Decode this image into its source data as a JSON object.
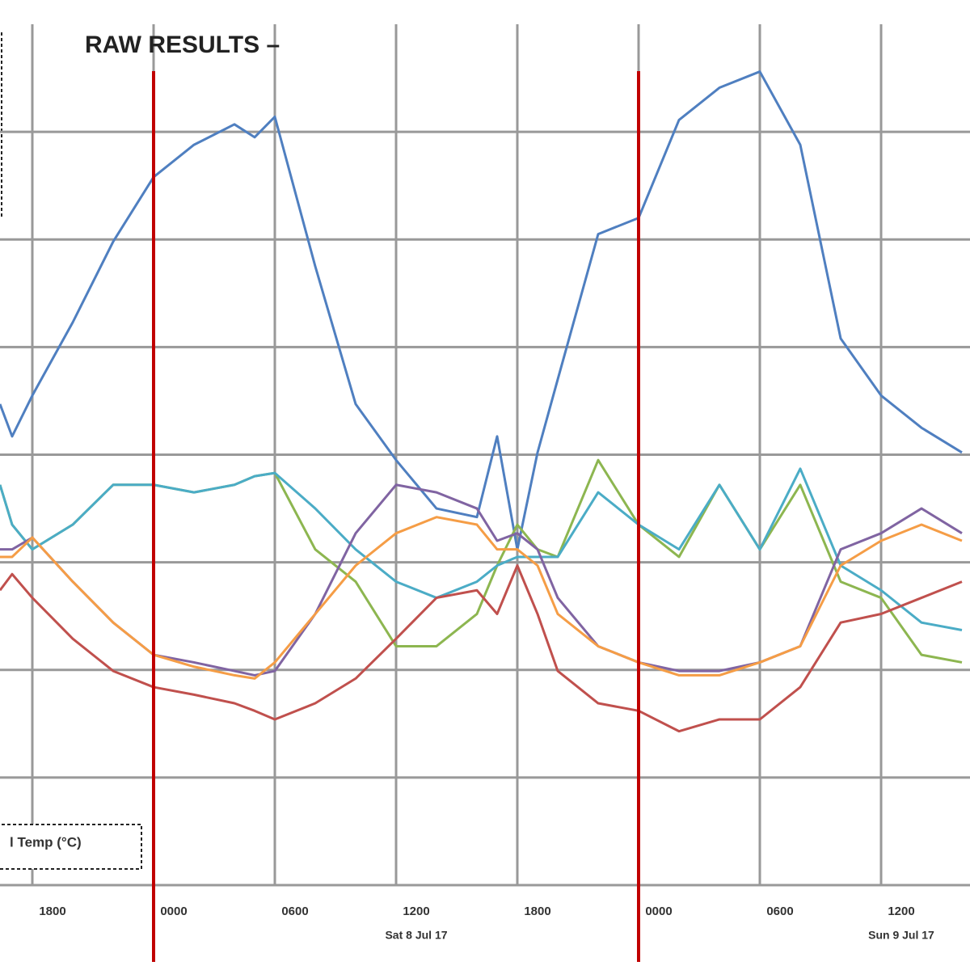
{
  "chart_data": {
    "type": "line",
    "title": "RAW RESULTS –",
    "x": [
      16.4,
      17,
      18,
      20,
      22,
      24,
      26,
      28,
      29,
      30,
      32,
      34,
      36,
      38,
      40,
      41,
      42,
      43,
      44,
      46,
      48,
      50,
      52,
      54,
      56,
      58,
      60,
      62,
      64
    ],
    "series": [
      {
        "color": "#4f7fc0",
        "values": [
          4.47,
          4.17,
          4.55,
          5.23,
          5.98,
          6.58,
          6.88,
          7.07,
          6.95,
          7.14,
          5.75,
          4.47,
          3.95,
          3.5,
          3.42,
          4.17,
          3.12,
          4.02,
          4.7,
          6.05,
          6.2,
          7.11,
          7.41,
          7.56,
          6.88,
          5.08,
          4.55,
          4.25,
          4.02
        ]
      },
      {
        "color": "#8db650",
        "values": [
          3.72,
          3.35,
          3.12,
          3.35,
          3.72,
          3.72,
          3.65,
          3.72,
          3.8,
          3.83,
          3.12,
          2.82,
          2.22,
          2.22,
          2.52,
          2.97,
          3.35,
          3.12,
          3.05,
          3.95,
          3.35,
          3.05,
          3.72,
          3.12,
          3.72,
          2.82,
          2.67,
          2.14,
          2.07
        ]
      },
      {
        "color": "#4bacc6",
        "values": [
          3.72,
          3.35,
          3.12,
          3.35,
          3.72,
          3.72,
          3.65,
          3.72,
          3.8,
          3.83,
          3.5,
          3.12,
          2.82,
          2.67,
          2.82,
          2.97,
          3.05,
          3.05,
          3.05,
          3.65,
          3.35,
          3.12,
          3.72,
          3.12,
          3.87,
          2.97,
          2.74,
          2.44,
          2.37
        ]
      },
      {
        "color": "#8064a2",
        "values": [
          3.12,
          3.12,
          3.23,
          2.82,
          2.44,
          2.14,
          2.07,
          1.99,
          1.95,
          1.99,
          2.52,
          3.27,
          3.72,
          3.65,
          3.5,
          3.2,
          3.27,
          3.12,
          2.67,
          2.22,
          2.07,
          1.99,
          1.99,
          2.07,
          2.22,
          3.12,
          3.27,
          3.5,
          3.27
        ]
      },
      {
        "color": "#f59d46",
        "values": [
          3.05,
          3.05,
          3.23,
          2.82,
          2.44,
          2.14,
          2.03,
          1.95,
          1.92,
          2.07,
          2.52,
          2.97,
          3.27,
          3.42,
          3.35,
          3.12,
          3.12,
          2.97,
          2.52,
          2.22,
          2.07,
          1.95,
          1.95,
          2.07,
          2.22,
          2.97,
          3.2,
          3.35,
          3.2
        ]
      },
      {
        "color": "#c0504d",
        "values": [
          2.74,
          2.89,
          2.67,
          2.29,
          1.99,
          1.84,
          1.77,
          1.69,
          1.62,
          1.54,
          1.69,
          1.92,
          2.29,
          2.67,
          2.74,
          2.52,
          2.97,
          2.52,
          1.99,
          1.69,
          1.62,
          1.43,
          1.54,
          1.54,
          1.84,
          2.44,
          2.52,
          2.67,
          2.82
        ]
      }
    ],
    "xlim": [
      16.4,
      64.4
    ],
    "ylim": [
      0,
      8
    ],
    "xticks": [
      {
        "value": 18,
        "label": "1800"
      },
      {
        "value": 24,
        "label": "0000"
      },
      {
        "value": 30,
        "label": "0600"
      },
      {
        "value": 36,
        "label": "1200"
      },
      {
        "value": 42,
        "label": "1800"
      },
      {
        "value": 48,
        "label": "0000"
      },
      {
        "value": 54,
        "label": "0600"
      },
      {
        "value": 60,
        "label": "1200"
      }
    ],
    "date_ticks": [
      {
        "value": 36,
        "label": "Sat 8 Jul 17"
      },
      {
        "value": 60,
        "label": "Sun 9 Jul 17"
      }
    ],
    "markers": [
      24,
      48
    ],
    "marker_color": "#c00000",
    "grid": true,
    "legend_text": "l Temp  (°C)"
  }
}
